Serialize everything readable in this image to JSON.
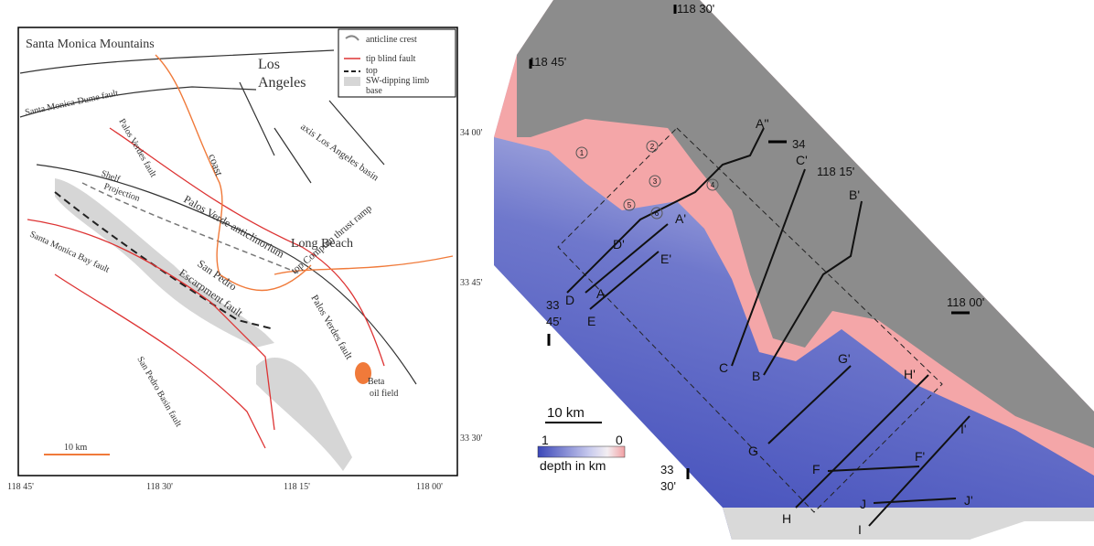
{
  "left_map": {
    "places": {
      "mountains": "Santa Monica Mountains",
      "los_angeles": [
        "Los",
        "Angeles"
      ],
      "long_beach": "Long Beach",
      "coast": "coast",
      "basin_axis": "axis Los Angeles basin",
      "shelf": [
        "Shelf",
        "Projection"
      ],
      "anticlinorium": "Palos Verde anticlinorium",
      "beta": [
        "Beta",
        "oil field"
      ]
    },
    "faults": {
      "dume": "Santa Monica-Dume fault",
      "palos_verdes_north": "Palos Verdes fault",
      "bay": "Santa Monica Bay fault",
      "san_pedro": [
        "San Pedro",
        "Escarpment fault"
      ],
      "compton": "top Compton thrust ramp",
      "palos_verdes_south": "Palos Verdes fault",
      "basin": "San Pedro Basin fault"
    },
    "legend": [
      "anticline crest",
      "tip blind fault",
      "top",
      "SW-dipping limb",
      "base"
    ],
    "scale": "10 km",
    "longitudes": [
      "118 45'",
      "118 30'",
      "118 15'",
      "118 00'"
    ],
    "latitudes": [
      "34 00'",
      "33 45'",
      "33 30'"
    ]
  },
  "right_map": {
    "longitudes": [
      "118 30'",
      "118 45'",
      "118 15'",
      "118 00'"
    ],
    "latitudes": [
      "34",
      [
        "33",
        "45'"
      ],
      [
        "33",
        "30'"
      ]
    ],
    "sections": [
      "A''",
      "C'",
      "B'",
      "A'",
      "D'",
      "E'",
      "D",
      "A",
      "E",
      "C",
      "B",
      "G'",
      "H'",
      "G",
      "F",
      "F'",
      "I'",
      "J",
      "J'",
      "H",
      "I"
    ],
    "sites": [
      "1",
      "2",
      "3",
      "4",
      "5",
      "6"
    ],
    "scale": "10 km",
    "colorbar": {
      "max": "1",
      "min": "0",
      "label": "depth in km"
    }
  }
}
